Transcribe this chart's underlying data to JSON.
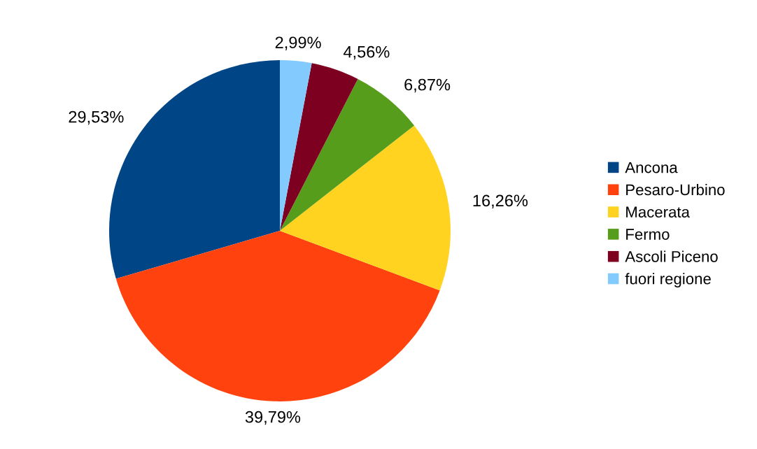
{
  "chart_data": {
    "type": "pie",
    "categories": [
      "Ancona",
      "Pesaro-Urbino",
      "Macerata",
      "Fermo",
      "Ascoli Piceno",
      "fuori regione"
    ],
    "values": [
      29.53,
      39.79,
      16.26,
      6.87,
      4.56,
      2.99
    ],
    "value_labels": [
      "29,53%",
      "39,79%",
      "16,26%",
      "6,87%",
      "4,56%",
      "2,99%"
    ],
    "colors": [
      "#004586",
      "#ff420e",
      "#ffd320",
      "#579d1c",
      "#7e0021",
      "#83caff"
    ],
    "legend": "right"
  }
}
